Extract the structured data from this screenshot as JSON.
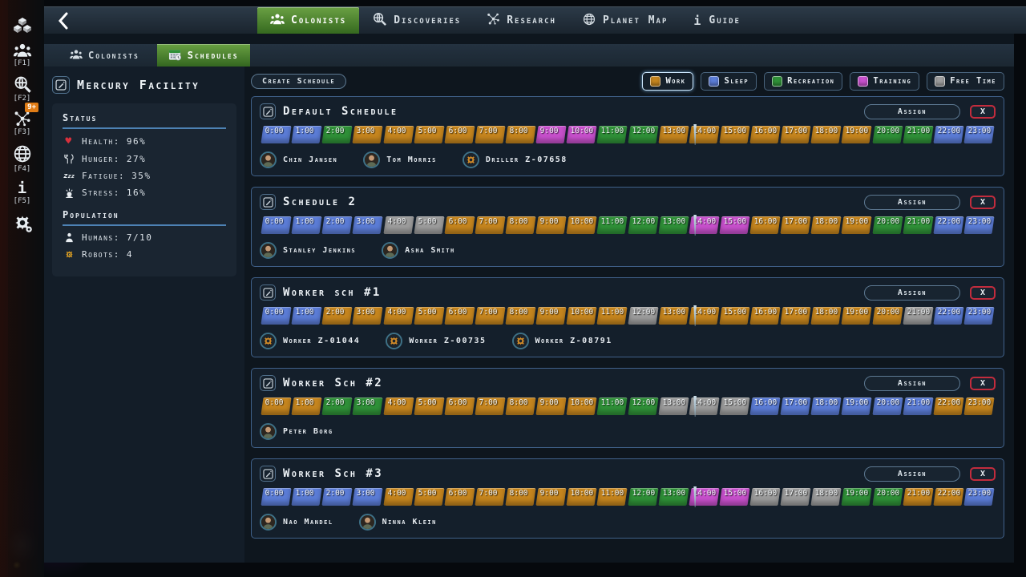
{
  "colors": {
    "work": "#c5851e",
    "sleep": "#5b7cd6",
    "recreation": "#2f9038",
    "training": "#c750cc",
    "free": "#9c9c9c",
    "accent_green": "#4e8a2e",
    "danger": "#c22c3d"
  },
  "topbar": {
    "tabs": [
      {
        "label": "Colonists",
        "icon": "people-icon",
        "active": true
      },
      {
        "label": "Discoveries",
        "icon": "discoveries-icon",
        "active": false
      },
      {
        "label": "Research",
        "icon": "research-icon",
        "active": false
      },
      {
        "label": "Planet Map",
        "icon": "globe-icon",
        "active": false
      },
      {
        "label": "Guide",
        "icon": "info-icon",
        "active": false
      }
    ]
  },
  "sidebar": {
    "hotkeys": [
      "[F1]",
      "[F2]",
      "[F3]",
      "[F4]",
      "[F5]"
    ],
    "discoveries_badge": "9+",
    "icons": [
      "cubes-icon",
      "people-icon",
      "discoveries-icon",
      "research-icon",
      "globe-icon",
      "info-icon",
      "gear-icon"
    ]
  },
  "subtabs": [
    {
      "label": "Colonists",
      "icon": "people-icon",
      "active": false
    },
    {
      "label": "Schedules",
      "icon": "calendar-icon",
      "active": true
    }
  ],
  "facility": {
    "title": "Mercury Facility",
    "status_heading": "Status",
    "status_items": [
      {
        "icon": "health-icon",
        "label": "Health:",
        "value": "96%"
      },
      {
        "icon": "hunger-icon",
        "label": "Hunger:",
        "value": "27%"
      },
      {
        "icon": "fatigue-icon",
        "label": "Fatigue:",
        "value": "35%"
      },
      {
        "icon": "stress-icon",
        "label": "Stress:",
        "value": "16%"
      }
    ],
    "population_heading": "Population",
    "population_items": [
      {
        "icon": "humans-icon",
        "label": "Humans:",
        "value": "7/10"
      },
      {
        "icon": "robots-icon",
        "label": "Robots:",
        "value": "4"
      }
    ]
  },
  "toolbar": {
    "create_schedule_label": "Create Schedule"
  },
  "legend": [
    {
      "label": "Work",
      "color": "#c5851e",
      "selected": true
    },
    {
      "label": "Sleep",
      "color": "#5b7cd6",
      "selected": false
    },
    {
      "label": "Recreation",
      "color": "#2f9038",
      "selected": false
    },
    {
      "label": "Training",
      "color": "#c750cc",
      "selected": false
    },
    {
      "label": "Free Time",
      "color": "#9c9c9c",
      "selected": false
    }
  ],
  "card_labels": {
    "assign": "Assign",
    "close": "X"
  },
  "time_labels": [
    "0:00",
    "1:00",
    "2:00",
    "3:00",
    "4:00",
    "5:00",
    "6:00",
    "7:00",
    "8:00",
    "9:00",
    "10:00",
    "11:00",
    "12:00",
    "13:00",
    "14:00",
    "15:00",
    "16:00",
    "17:00",
    "18:00",
    "19:00",
    "20:00",
    "21:00",
    "22:00",
    "23:00"
  ],
  "current_time_marker": {
    "hour": 14,
    "fraction": 0.2
  },
  "schedules": [
    {
      "title": "Default Schedule",
      "hours": [
        "sleep",
        "sleep",
        "recreation",
        "work",
        "work",
        "work",
        "work",
        "work",
        "work",
        "training",
        "training",
        "recreation",
        "recreation",
        "work",
        "work",
        "work",
        "work",
        "work",
        "work",
        "work",
        "recreation",
        "recreation",
        "sleep",
        "sleep"
      ],
      "members": [
        {
          "name": "Chin Jansen",
          "type": "human"
        },
        {
          "name": "Tom Morris",
          "type": "human"
        },
        {
          "name": "Driller Z-07658",
          "type": "robot"
        }
      ]
    },
    {
      "title": "Schedule 2",
      "hours": [
        "sleep",
        "sleep",
        "sleep",
        "sleep",
        "free",
        "free",
        "work",
        "work",
        "work",
        "work",
        "work",
        "recreation",
        "recreation",
        "recreation",
        "training",
        "training",
        "work",
        "work",
        "work",
        "work",
        "recreation",
        "recreation",
        "sleep",
        "sleep"
      ],
      "members": [
        {
          "name": "Stanley Jenkins",
          "type": "human"
        },
        {
          "name": "Asha Smith",
          "type": "human"
        }
      ]
    },
    {
      "title": "Worker sch #1",
      "hours": [
        "sleep",
        "sleep",
        "work",
        "work",
        "work",
        "work",
        "work",
        "work",
        "work",
        "work",
        "work",
        "work",
        "free",
        "work",
        "work",
        "work",
        "work",
        "work",
        "work",
        "work",
        "work",
        "free",
        "sleep",
        "sleep"
      ],
      "members": [
        {
          "name": "Worker Z-01044",
          "type": "robot"
        },
        {
          "name": "Worker Z-00735",
          "type": "robot"
        },
        {
          "name": "Worker Z-08791",
          "type": "robot"
        }
      ]
    },
    {
      "title": "Worker Sch #2",
      "hours": [
        "work",
        "work",
        "recreation",
        "recreation",
        "work",
        "work",
        "work",
        "work",
        "work",
        "work",
        "work",
        "recreation",
        "recreation",
        "free",
        "free",
        "free",
        "sleep",
        "sleep",
        "sleep",
        "sleep",
        "sleep",
        "sleep",
        "work",
        "work"
      ],
      "members": [
        {
          "name": "Peter Borg",
          "type": "human"
        }
      ]
    },
    {
      "title": "Worker Sch #3",
      "hours": [
        "sleep",
        "sleep",
        "sleep",
        "sleep",
        "work",
        "work",
        "work",
        "work",
        "work",
        "work",
        "work",
        "work",
        "recreation",
        "recreation",
        "training",
        "training",
        "free",
        "free",
        "free",
        "recreation",
        "recreation",
        "work",
        "work",
        "sleep"
      ],
      "members": [
        {
          "name": "Nao Mandel",
          "type": "human"
        },
        {
          "name": "Ninna Klein",
          "type": "human"
        }
      ]
    }
  ]
}
